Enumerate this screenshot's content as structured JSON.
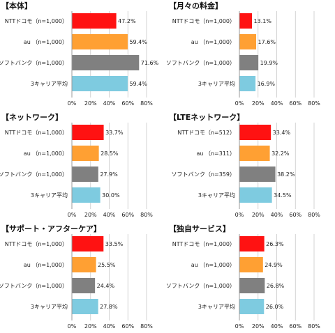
{
  "colors": {
    "docomo": "#ff1212",
    "au": "#ffa033",
    "softbank": "#808080",
    "average": "#7ecbe0",
    "grid": "#c8c8c8"
  },
  "chart_data": [
    {
      "type": "bar",
      "title": "【本体】",
      "categories": [
        "NTTドコモ（n=1,000）",
        "au （n=1,000）",
        "ソフトバンク（n=1,000）",
        "3キャリア平均"
      ],
      "values": [
        47.2,
        59.4,
        71.6,
        59.4
      ],
      "value_labels": [
        "47.2%",
        "59.4%",
        "71.6%",
        "59.4%"
      ],
      "ticks": [
        "0%",
        "20%",
        "40%",
        "60%",
        "80%"
      ],
      "xlim": [
        0,
        80
      ],
      "grid": true
    },
    {
      "type": "bar",
      "title": "【月々の料金】",
      "categories": [
        "NTTドコモ（n=1,000）",
        "au （n=1,000）",
        "ソフトバンク（n=1,000）",
        "3キャリア平均"
      ],
      "values": [
        13.1,
        17.6,
        19.9,
        16.9
      ],
      "value_labels": [
        "13.1%",
        "17.6%",
        "19.9%",
        "16.9%"
      ],
      "ticks": [
        "0%",
        "20%",
        "40%",
        "60%",
        "80%"
      ],
      "xlim": [
        0,
        80
      ],
      "grid": true
    },
    {
      "type": "bar",
      "title": "【ネットワーク】",
      "categories": [
        "NTTドコモ（n=1,000）",
        "au （n=1,000）",
        "ソフトバンク（n=1,000）",
        "3キャリア平均"
      ],
      "values": [
        33.7,
        28.5,
        27.9,
        30.0
      ],
      "value_labels": [
        "33.7%",
        "28.5%",
        "27.9%",
        "30.0%"
      ],
      "ticks": [
        "0%",
        "20%",
        "40%",
        "60%",
        "80%"
      ],
      "xlim": [
        0,
        80
      ],
      "grid": true
    },
    {
      "type": "bar",
      "title": "【LTEネットワーク】",
      "categories": [
        "NTTドコモ（n=512）",
        "au （n=311）",
        "ソフトバンク（n=359）",
        "3キャリア平均"
      ],
      "values": [
        33.4,
        32.2,
        38.2,
        34.5
      ],
      "value_labels": [
        "33.4%",
        "32.2%",
        "38.2%",
        "34.5%"
      ],
      "ticks": [
        "0%",
        "20%",
        "40%",
        "60%",
        "80%"
      ],
      "xlim": [
        0,
        80
      ],
      "grid": true
    },
    {
      "type": "bar",
      "title": "【サポート・アフターケア】",
      "categories": [
        "NTTドコモ（n=1,000）",
        "au （n=1,000）",
        "ソフトバンク（n=1,000）",
        "3キャリア平均"
      ],
      "values": [
        33.5,
        25.5,
        24.4,
        27.8
      ],
      "value_labels": [
        "33.5%",
        "25.5%",
        "24.4%",
        "27.8%"
      ],
      "ticks": [
        "0%",
        "20%",
        "40%",
        "60%",
        "80%"
      ],
      "xlim": [
        0,
        80
      ],
      "grid": true
    },
    {
      "type": "bar",
      "title": "【独自サービス】",
      "categories": [
        "NTTドコモ（n=1,000）",
        "au （n=1,000）",
        "ソフトバンク（n=1,000）",
        "3キャリア平均"
      ],
      "values": [
        26.3,
        24.9,
        26.8,
        26.0
      ],
      "value_labels": [
        "26.3%",
        "24.9%",
        "26.8%",
        "26.0%"
      ],
      "ticks": [
        "0%",
        "20%",
        "40%",
        "60%",
        "80%"
      ],
      "xlim": [
        0,
        80
      ],
      "grid": true
    }
  ]
}
